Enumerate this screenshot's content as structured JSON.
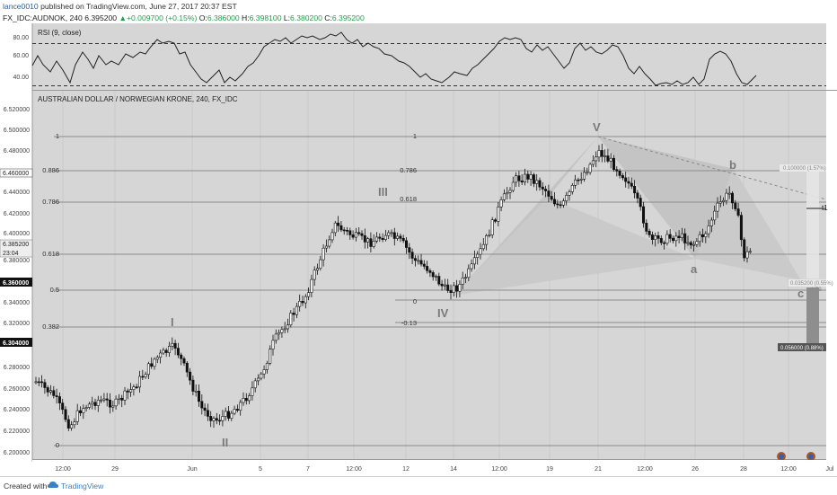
{
  "header": {
    "author": "lance0010",
    "published_text": "published on TradingView.com, June 27, 2017 20:37 EST",
    "symbol": "FX_IDC:AUDNOK, 240",
    "last": "6.395200",
    "change": "+0.009700 (+0.15%)",
    "o_label": "O:",
    "o_value": "6.386000",
    "h_label": "H:",
    "h_value": "6.398100",
    "l_label": "L:",
    "l_value": "6.380200",
    "c_label": "C:",
    "c_value": "6.395200"
  },
  "rsi": {
    "title": "RSI (9, close)",
    "ticks": [
      "80.00",
      "60.00",
      "40.00"
    ]
  },
  "main": {
    "title": "AUSTRALIAN DOLLAR / NORWEGIAN KRONE, 240, FX_IDC",
    "price_ticks": [
      "6.520000",
      "6.500000",
      "6.480000",
      "6.460000",
      "6.440000",
      "6.420000",
      "6.400000",
      "6.380000",
      "6.360000",
      "6.340000",
      "6.320000",
      "6.300000",
      "6.280000",
      "6.260000",
      "6.240000",
      "6.220000",
      "6.200000"
    ],
    "price_badges": [
      "6.460000",
      "6.385200",
      "23:04",
      "6.360000",
      "6.304000"
    ],
    "fib_left": [
      "1",
      "0.886",
      "0.786",
      "0.618",
      "0.5",
      "0.382",
      "0"
    ],
    "fib_mid": [
      "1",
      "0.786",
      "0.618",
      "0",
      "-0.13"
    ],
    "wave_labels": [
      "I",
      "II",
      "III",
      "IV",
      "V",
      "a",
      "b",
      "c",
      "t1"
    ],
    "box_labels": [
      "0.100000 (1.57%)",
      "0.035200 (0.55%)",
      "1.79",
      "0.056000 (0.88%)"
    ],
    "time_ticks": [
      "12:00",
      "29",
      "Jun",
      "5",
      "7",
      "12:00",
      "12",
      "14",
      "12:00",
      "19",
      "21",
      "12:00",
      "26",
      "28",
      "12:00",
      "Jul"
    ]
  },
  "footer": {
    "created_with": "Created with",
    "brand": "TradingView"
  },
  "colors": {
    "pane_bg": "#d6d6d6",
    "axis_bg": "#ffffff",
    "candle": "#111111",
    "fib_line": "#8c8c8c",
    "wave_text": "#7a7a7a",
    "harmonic_fill": "#c4c4c4"
  }
}
